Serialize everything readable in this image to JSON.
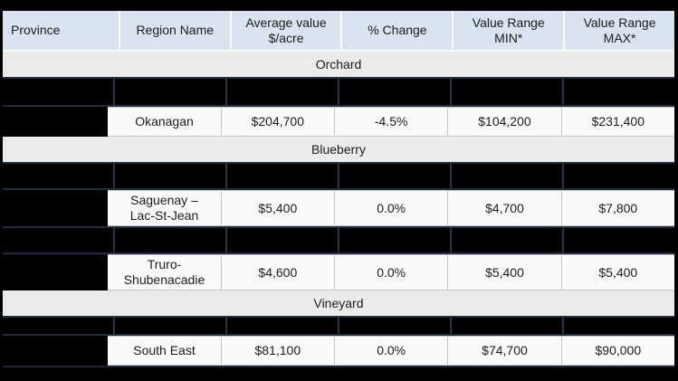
{
  "table": {
    "columns": [
      "Province",
      "Region Name",
      "Average value\n$/acre",
      "% Change",
      "Value Range\nMIN*",
      "Value Range\nMAX*"
    ],
    "sections": [
      {
        "name": "Orchard",
        "rows": [
          {
            "type": "redacted"
          },
          {
            "type": "data",
            "region": "Okanagan",
            "average": "$204,700",
            "change": "-4.5%",
            "min": "$104,200",
            "max": "$231,400"
          }
        ]
      },
      {
        "name": "Blueberry",
        "rows": [
          {
            "type": "redacted"
          },
          {
            "type": "data",
            "region": "Saguenay –\nLac-St-Jean",
            "average": "$5,400",
            "change": "0.0%",
            "min": "$4,700",
            "max": "$7,800"
          },
          {
            "type": "redacted"
          },
          {
            "type": "data",
            "region": "Truro-\nShubenacadie",
            "average": "$4,600",
            "change": "0.0%",
            "min": "$5,400",
            "max": "$5,400"
          }
        ]
      },
      {
        "name": "Vineyard",
        "rows": [
          {
            "type": "redacted"
          },
          {
            "type": "data",
            "region": "South East",
            "average": "$81,100",
            "change": "0.0%",
            "min": "$74,700",
            "max": "$90,000"
          }
        ]
      }
    ],
    "colors": {
      "header_bg": "#d9e4f0",
      "section_bg": "#ebebeb",
      "data_cell_bg": "#fafafa",
      "redaction": "#000000",
      "redaction_divider": "#2c3648"
    }
  }
}
